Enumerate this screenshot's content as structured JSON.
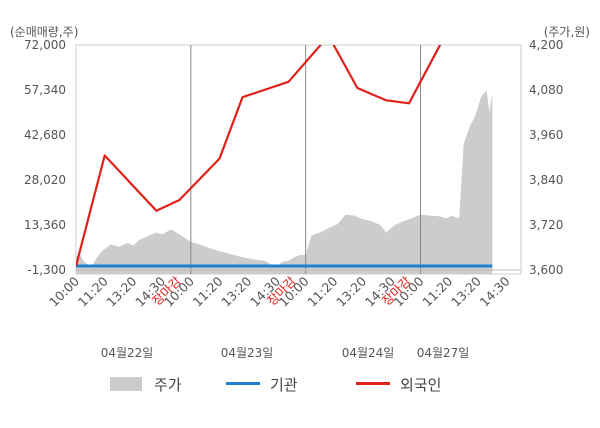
{
  "chart_data": {
    "type": "line",
    "left_axis_unit": "(순매매량,주)",
    "right_axis_unit": "(주가,원)",
    "left_ticks": [
      "72,000",
      "57,340",
      "42,680",
      "28,020",
      "13,360",
      "-1,300"
    ],
    "right_ticks": [
      "4,200",
      "4,080",
      "3,960",
      "3,840",
      "3,720",
      "3,600"
    ],
    "left_range": [
      -1300,
      72000
    ],
    "right_range": [
      3600,
      4200
    ],
    "days": [
      {
        "date": "04월22일",
        "times": [
          "10:00",
          "11:20",
          "13:20",
          "14:30"
        ],
        "close_label": "장마감"
      },
      {
        "date": "04월23일",
        "times": [
          "10:00",
          "11:20",
          "13:20",
          "14:30"
        ],
        "close_label": "장마감"
      },
      {
        "date": "04월24일",
        "times": [
          "10:00",
          "11:20",
          "13:20",
          "14:30"
        ],
        "close_label": "장마감"
      },
      {
        "date": "04월27일",
        "times": [
          "10:00",
          "11:20",
          "13:20",
          "14:30"
        ],
        "close_label": ""
      }
    ],
    "x_range": [
      0,
      15.5
    ],
    "series": [
      {
        "name": "주가",
        "kind": "area",
        "axis": "right",
        "color": "#cccccc",
        "points": [
          [
            0.0,
            3630
          ],
          [
            0.1,
            3650
          ],
          [
            0.25,
            3625
          ],
          [
            0.4,
            3615
          ],
          [
            0.55,
            3610
          ],
          [
            0.7,
            3630
          ],
          [
            0.9,
            3650
          ],
          [
            1.2,
            3668
          ],
          [
            1.5,
            3662
          ],
          [
            1.8,
            3672
          ],
          [
            2.0,
            3665
          ],
          [
            2.2,
            3680
          ],
          [
            2.5,
            3690
          ],
          [
            2.8,
            3700
          ],
          [
            3.0,
            3695
          ],
          [
            3.3,
            3708
          ],
          [
            3.5,
            3700
          ],
          [
            3.7,
            3690
          ],
          [
            3.9,
            3680
          ],
          [
            4.0,
            3675
          ],
          [
            4.3,
            3668
          ],
          [
            4.6,
            3660
          ],
          [
            5.0,
            3650
          ],
          [
            5.4,
            3642
          ],
          [
            5.8,
            3634
          ],
          [
            6.2,
            3628
          ],
          [
            6.6,
            3624
          ],
          [
            6.8,
            3614
          ],
          [
            7.0,
            3612
          ],
          [
            7.2,
            3622
          ],
          [
            7.4,
            3625
          ],
          [
            7.6,
            3634
          ],
          [
            7.8,
            3640
          ],
          [
            8.0,
            3640
          ],
          [
            8.2,
            3692
          ],
          [
            8.5,
            3700
          ],
          [
            8.8,
            3712
          ],
          [
            9.1,
            3722
          ],
          [
            9.4,
            3748
          ],
          [
            9.7,
            3745
          ],
          [
            10.0,
            3735
          ],
          [
            10.3,
            3730
          ],
          [
            10.6,
            3720
          ],
          [
            10.8,
            3700
          ],
          [
            11.1,
            3720
          ],
          [
            11.4,
            3730
          ],
          [
            11.7,
            3738
          ],
          [
            12.0,
            3748
          ],
          [
            12.3,
            3745
          ],
          [
            12.6,
            3744
          ],
          [
            12.9,
            3738
          ],
          [
            13.1,
            3745
          ],
          [
            13.3,
            3738
          ],
          [
            13.35,
            3740
          ],
          [
            13.5,
            3935
          ],
          [
            13.7,
            3980
          ],
          [
            13.9,
            4010
          ],
          [
            14.1,
            4060
          ],
          [
            14.3,
            4080
          ],
          [
            14.4,
            4020
          ],
          [
            14.5,
            4070
          ]
        ]
      },
      {
        "name": "기관",
        "kind": "line",
        "axis": "left",
        "color": "#1f7fd0",
        "points": [
          [
            0.0,
            0
          ],
          [
            14.5,
            0
          ]
        ]
      },
      {
        "name": "외국인",
        "kind": "line",
        "axis": "left",
        "color": "#e0211b",
        "points": [
          [
            0.0,
            0
          ],
          [
            1.0,
            36000
          ],
          [
            2.8,
            18000
          ],
          [
            3.6,
            21500
          ],
          [
            5.0,
            35000
          ],
          [
            5.8,
            55000
          ],
          [
            7.4,
            60000
          ],
          [
            8.8,
            75000
          ],
          [
            9.8,
            58000
          ],
          [
            10.8,
            54000
          ],
          [
            11.6,
            53000
          ],
          [
            14.5,
            104000
          ]
        ]
      }
    ],
    "legend": [
      "주가",
      "기관",
      "외국인"
    ],
    "legend_position": "bottom"
  }
}
